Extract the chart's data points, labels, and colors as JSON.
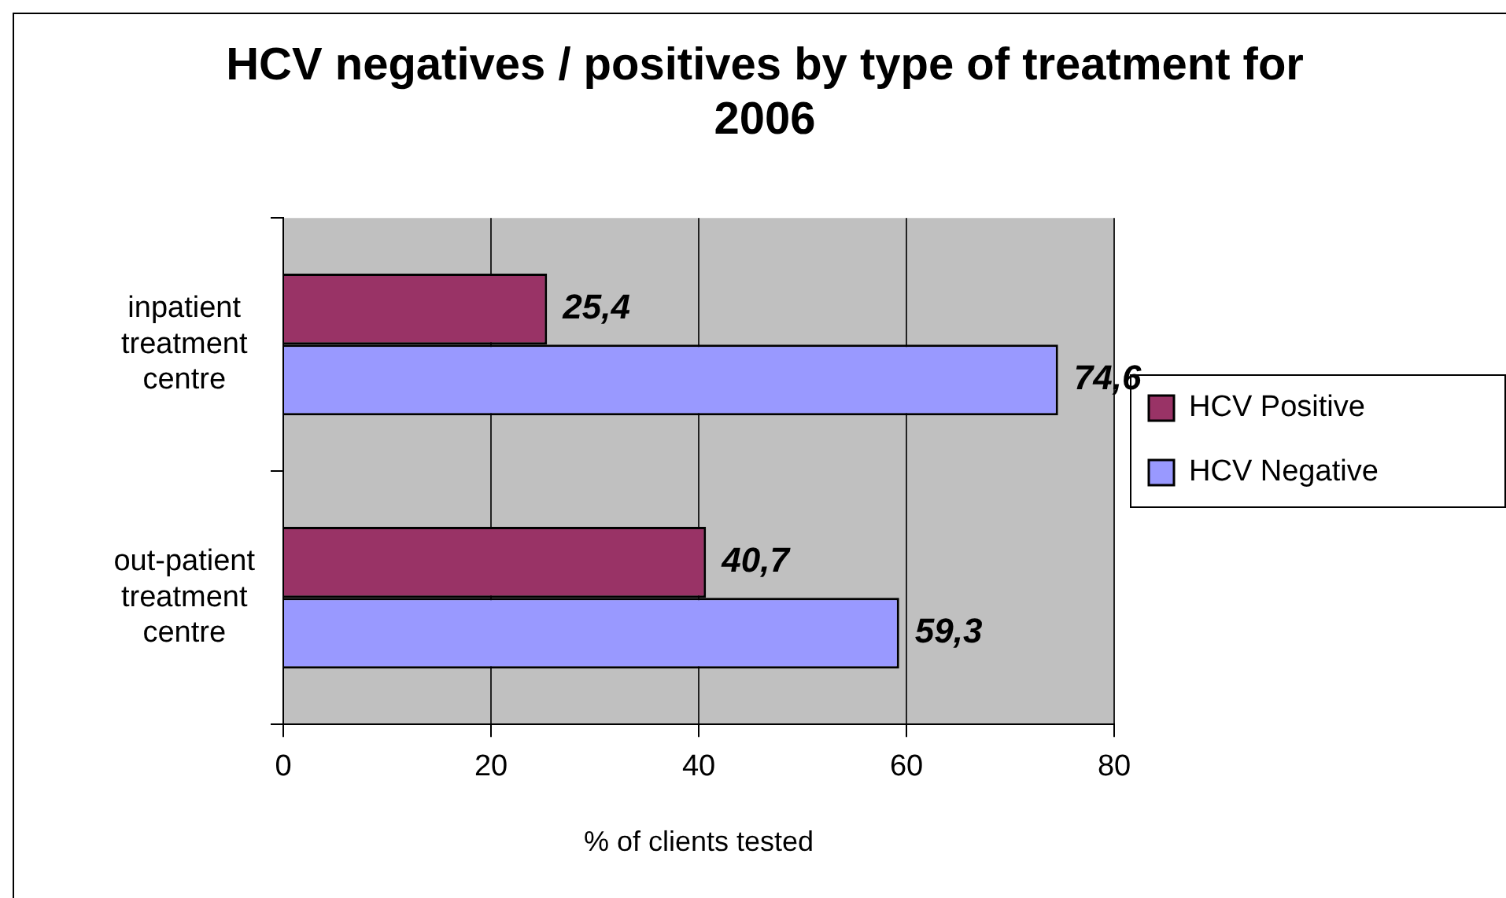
{
  "chart_data": {
    "type": "bar",
    "orientation": "horizontal",
    "title": "HCV negatives / positives by type of treatment for 2006",
    "xlabel": "% of clients tested",
    "categories": [
      "inpatient treatment centre",
      "out-patient treatment centre"
    ],
    "series": [
      {
        "name": "HCV Positive",
        "color": "#993366",
        "values": [
          25.4,
          40.7
        ],
        "value_labels": [
          "25,4",
          "40,7"
        ]
      },
      {
        "name": "HCV Negative",
        "color": "#9999ff",
        "values": [
          74.6,
          59.3
        ],
        "value_labels": [
          "74,6",
          "59,3"
        ]
      }
    ],
    "xlim": [
      0,
      80
    ],
    "xticks": [
      0,
      20,
      40,
      60,
      80
    ],
    "grid": "x",
    "legend": "right"
  }
}
